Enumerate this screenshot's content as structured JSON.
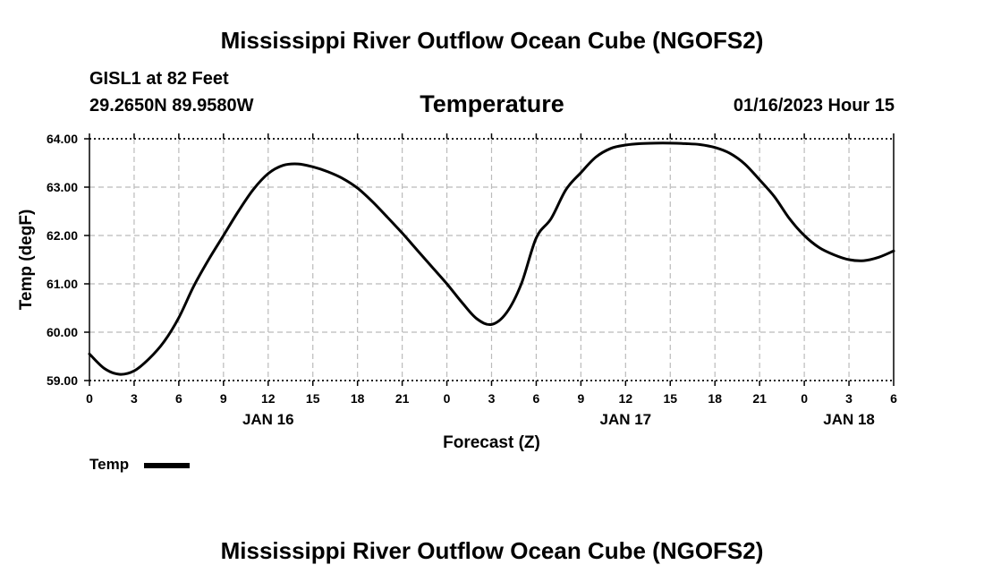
{
  "header": {
    "title": "Mississippi River Outflow Ocean Cube (NGOFS2)",
    "station": "GISL1 at 82 Feet",
    "coords": "29.2650N  89.9580W",
    "datetime": "01/16/2023 Hour 15"
  },
  "footer": {
    "title": "Mississippi River Outflow Ocean Cube (NGOFS2)"
  },
  "legend": {
    "label": "Temp"
  },
  "colors": {
    "line": "#000000",
    "grid": "#bbbbbb",
    "axis": "#000000"
  },
  "chart_data": {
    "type": "line",
    "title": "Temperature",
    "xlabel": "Forecast (Z)",
    "ylabel": "Temp (degF)",
    "xlim": [
      0,
      54
    ],
    "ylim": [
      59.0,
      64.0
    ],
    "grid": true,
    "legend_position": "bottom-left",
    "y_ticks": [
      59.0,
      60.0,
      61.0,
      62.0,
      63.0,
      64.0
    ],
    "y_tick_labels": [
      "59.00",
      "60.00",
      "61.00",
      "62.00",
      "63.00",
      "64.00"
    ],
    "x_ticks": [
      0,
      3,
      6,
      9,
      12,
      15,
      18,
      21,
      24,
      27,
      30,
      33,
      36,
      39,
      42,
      45,
      48,
      51,
      54
    ],
    "x_tick_labels": [
      "0",
      "3",
      "6",
      "9",
      "12",
      "15",
      "18",
      "21",
      "0",
      "3",
      "6",
      "9",
      "12",
      "15",
      "18",
      "21",
      "0",
      "3",
      "6"
    ],
    "date_labels": [
      {
        "x": 12,
        "label": "JAN 16"
      },
      {
        "x": 36,
        "label": "JAN 17"
      },
      {
        "x": 51,
        "label": "JAN 18"
      }
    ],
    "series": [
      {
        "name": "Temp",
        "x": [
          0,
          1,
          2,
          3,
          4,
          5,
          6,
          7,
          8,
          9,
          10,
          11,
          12,
          13,
          14,
          15,
          16,
          17,
          18,
          19,
          20,
          21,
          22,
          23,
          24,
          25,
          26,
          27,
          28,
          29,
          30,
          31,
          32,
          33,
          34,
          35,
          36,
          37,
          38,
          39,
          40,
          41,
          42,
          43,
          44,
          45,
          46,
          47,
          48,
          49,
          50,
          51,
          52,
          53,
          54
        ],
        "values": [
          59.55,
          59.25,
          59.13,
          59.2,
          59.45,
          59.8,
          60.3,
          60.95,
          61.5,
          62.0,
          62.5,
          62.95,
          63.28,
          63.45,
          63.48,
          63.42,
          63.32,
          63.18,
          62.98,
          62.7,
          62.38,
          62.05,
          61.7,
          61.35,
          61.0,
          60.62,
          60.28,
          60.16,
          60.4,
          61.0,
          61.95,
          62.35,
          62.95,
          63.3,
          63.62,
          63.8,
          63.87,
          63.9,
          63.91,
          63.91,
          63.9,
          63.88,
          63.82,
          63.7,
          63.48,
          63.15,
          62.8,
          62.35,
          62.0,
          61.75,
          61.6,
          61.5,
          61.48,
          61.55,
          61.68
        ]
      }
    ]
  }
}
